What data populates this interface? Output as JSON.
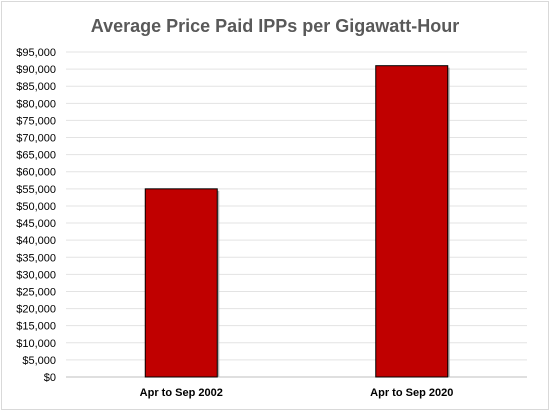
{
  "chart_data": {
    "type": "bar",
    "title": "Average Price Paid IPPs per Gigawatt-Hour",
    "categories": [
      "Apr to Sep 2002",
      "Apr to Sep 2020"
    ],
    "series": [
      {
        "values": [
          55000,
          91000
        ]
      }
    ],
    "ylim": [
      0,
      95000
    ],
    "y_ticks": [
      "$0",
      "$5,000",
      "$10,000",
      "$15,000",
      "$20,000",
      "$25,000",
      "$30,000",
      "$35,000",
      "$40,000",
      "$45,000",
      "$50,000",
      "$55,000",
      "$60,000",
      "$65,000",
      "$70,000",
      "$75,000",
      "$80,000",
      "$85,000",
      "$90,000",
      "$95,000"
    ],
    "grid": true,
    "legend": "none",
    "bar_color": "#c00000"
  }
}
